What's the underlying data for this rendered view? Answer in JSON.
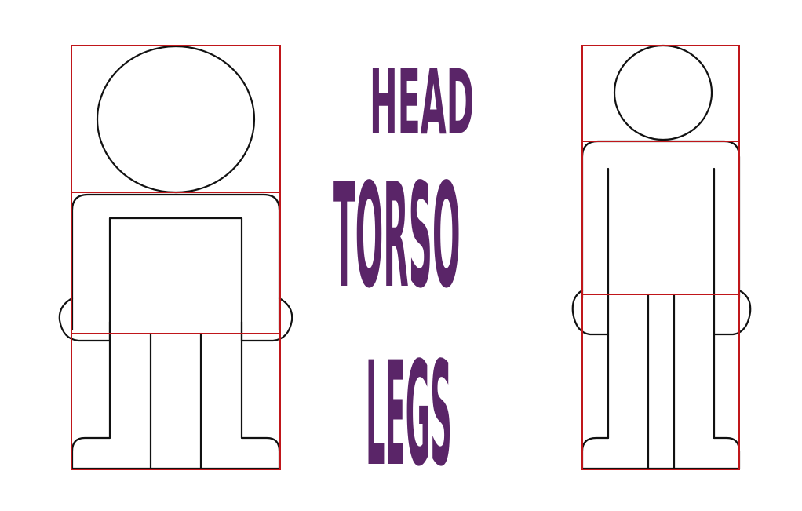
{
  "labels": {
    "head": "HEAD",
    "torso": "TORSO",
    "legs": "LEGS"
  },
  "colors": {
    "background": "#ffffff",
    "text": "#5a2568",
    "guide_lines": "#c0161a",
    "figure_outline": "#111111"
  }
}
